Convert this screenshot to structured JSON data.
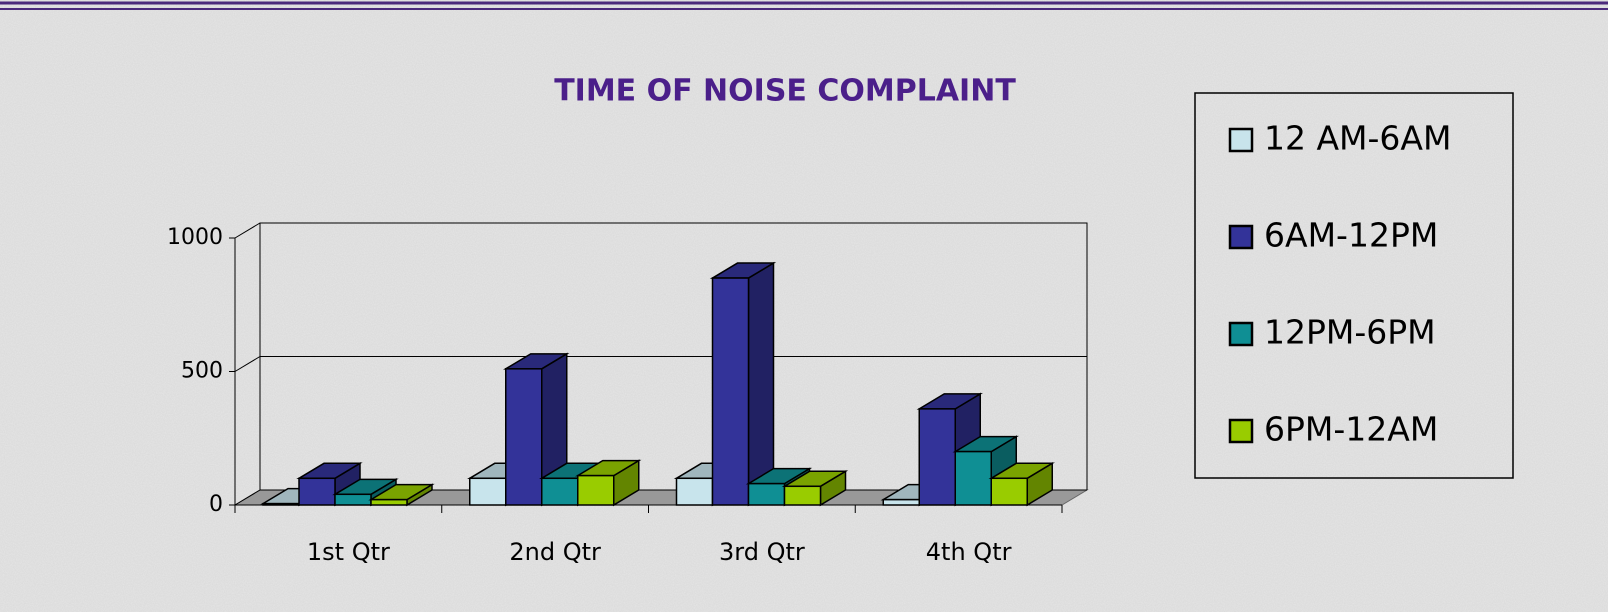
{
  "chart_data": {
    "type": "bar3d",
    "title": "TIME OF NOISE COMPLAINT",
    "categories": [
      "1st Qtr",
      "2nd Qtr",
      "3rd Qtr",
      "4th Qtr"
    ],
    "series": [
      {
        "name": "12 AM-6AM",
        "color": "#c8e4ec",
        "values": [
          5,
          100,
          100,
          20
        ]
      },
      {
        "name": "6AM-12PM",
        "color": "#333399",
        "values": [
          100,
          510,
          850,
          360
        ]
      },
      {
        "name": "12PM-6PM",
        "color": "#0f8f94",
        "values": [
          40,
          100,
          80,
          200
        ]
      },
      {
        "name": "6PM-12AM",
        "color": "#99cc00",
        "values": [
          20,
          110,
          70,
          100
        ]
      }
    ],
    "ylim": [
      0,
      1000
    ],
    "yticks": [
      0,
      500,
      1000
    ],
    "grid": true,
    "legend": "right"
  }
}
